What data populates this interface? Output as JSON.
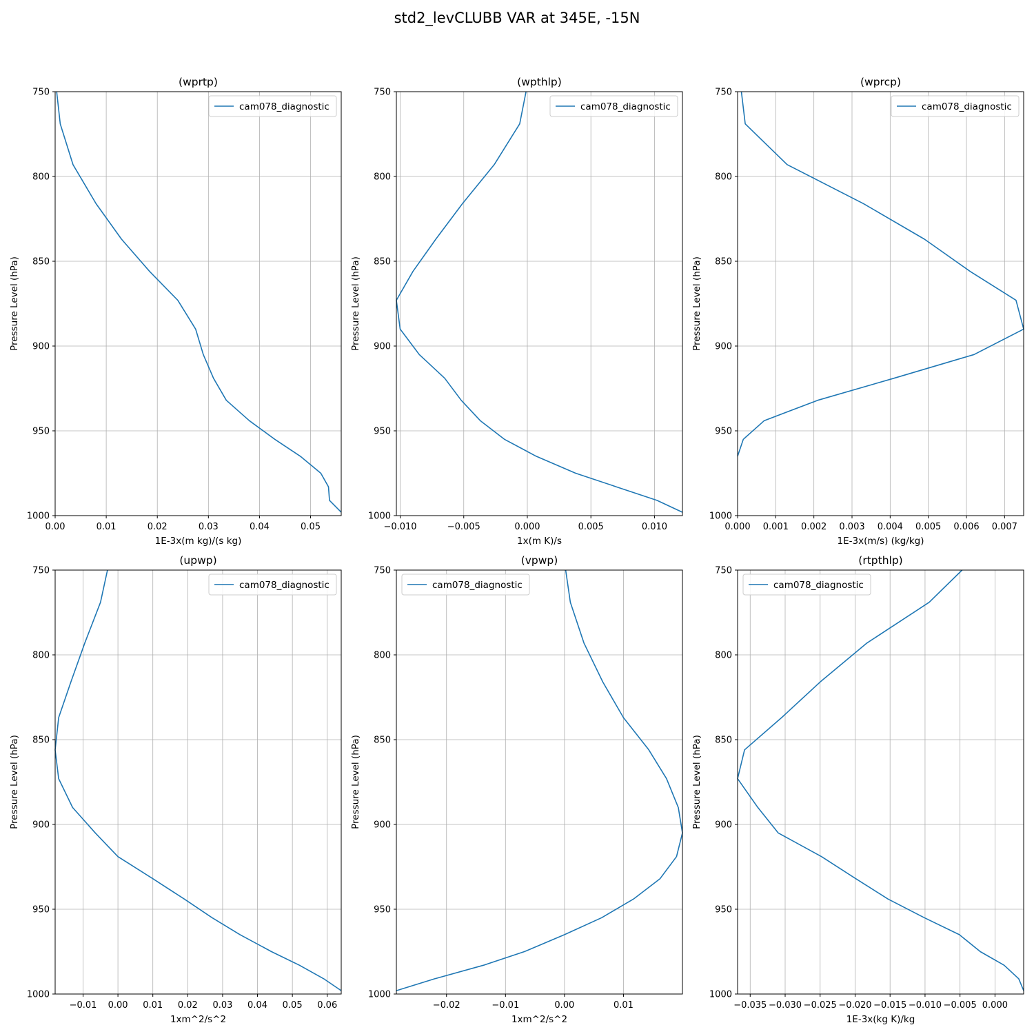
{
  "figure": {
    "title": "std2_levCLUBB VAR at 345E, -15N"
  },
  "chart_data": [
    {
      "type": "line",
      "title": "(wprtp)",
      "xlabel": "1E-3x(m kg)/(s kg)",
      "ylabel": "Pressure Level (hPa)",
      "xlim": [
        0,
        0.056
      ],
      "ylim": [
        1000,
        750
      ],
      "xticks": [
        0,
        0.01,
        0.02,
        0.03,
        0.04,
        0.05
      ],
      "xtick_labels": [
        "0.00",
        "0.01",
        "0.02",
        "0.03",
        "0.04",
        "0.05"
      ],
      "yticks": [
        750,
        800,
        850,
        900,
        950,
        1000
      ],
      "grid": true,
      "legend_position": "top-right",
      "series": [
        {
          "name": "cam078_diagnostic",
          "color": "#1f77b4",
          "x": [
            0.0003,
            0.001,
            0.0035,
            0.008,
            0.013,
            0.0185,
            0.024,
            0.0275,
            0.029,
            0.031,
            0.0335,
            0.038,
            0.043,
            0.048,
            0.052,
            0.0535,
            0.0537,
            0.056
          ],
          "y": [
            750,
            769,
            793,
            816,
            837,
            856,
            873,
            890,
            905,
            919,
            932,
            944,
            955,
            965,
            975,
            983,
            991,
            998
          ]
        }
      ]
    },
    {
      "type": "line",
      "title": "(wpthlp)",
      "xlabel": "1x(m K)/s",
      "ylabel": "Pressure Level (hPa)",
      "xlim": [
        -0.0103,
        0.0122
      ],
      "ylim": [
        1000,
        750
      ],
      "xticks": [
        -0.01,
        -0.005,
        0,
        0.005,
        0.01
      ],
      "xtick_labels": [
        "−0.010",
        "−0.005",
        "0.000",
        "0.005",
        "0.010"
      ],
      "yticks": [
        750,
        800,
        850,
        900,
        950,
        1000
      ],
      "grid": true,
      "legend_position": "top-right",
      "series": [
        {
          "name": "cam078_diagnostic",
          "color": "#1f77b4",
          "x": [
            -0.0001,
            -0.0006,
            -0.0026,
            -0.0051,
            -0.0072,
            -0.009,
            -0.0103,
            -0.01,
            -0.0085,
            -0.0065,
            -0.0052,
            -0.0037,
            -0.0018,
            0.0007,
            0.0038,
            0.007,
            0.0102,
            0.0122
          ],
          "y": [
            750,
            769,
            793,
            816,
            837,
            856,
            873,
            890,
            905,
            919,
            932,
            944,
            955,
            965,
            975,
            983,
            991,
            998
          ]
        }
      ]
    },
    {
      "type": "line",
      "title": "(wprcp)",
      "xlabel": "1E-3x(m/s) (kg/kg)",
      "ylabel": "Pressure Level (hPa)",
      "xlim": [
        0,
        0.0075
      ],
      "ylim": [
        1000,
        750
      ],
      "xticks": [
        0,
        0.001,
        0.002,
        0.003,
        0.004,
        0.005,
        0.006,
        0.007
      ],
      "xtick_labels": [
        "0.000",
        "0.001",
        "0.002",
        "0.003",
        "0.004",
        "0.005",
        "0.006",
        "0.007"
      ],
      "yticks": [
        750,
        800,
        850,
        900,
        950,
        1000
      ],
      "grid": true,
      "legend_position": "top-right",
      "series": [
        {
          "name": "cam078_diagnostic",
          "color": "#1f77b4",
          "x": [
            0.0001,
            0.0002,
            0.0013,
            0.0033,
            0.0049,
            0.0061,
            0.0073,
            0.0075,
            0.0062,
            0.0041,
            0.0021,
            0.0007,
            0.00015,
            0.0
          ],
          "y": [
            750,
            769,
            793,
            816,
            837,
            856,
            873,
            890,
            905,
            919,
            932,
            944,
            955,
            965
          ]
        }
      ]
    },
    {
      "type": "line",
      "title": "(upwp)",
      "xlabel": "1xm^2/s^2",
      "ylabel": "Pressure Level (hPa)",
      "xlim": [
        -0.018,
        0.064
      ],
      "ylim": [
        1000,
        750
      ],
      "xticks": [
        -0.01,
        0,
        0.01,
        0.02,
        0.03,
        0.04,
        0.05,
        0.06
      ],
      "xtick_labels": [
        "−0.01",
        "0.00",
        "0.01",
        "0.02",
        "0.03",
        "0.04",
        "0.05",
        "0.06"
      ],
      "yticks": [
        750,
        800,
        850,
        900,
        950,
        1000
      ],
      "grid": true,
      "legend_position": "top-right",
      "series": [
        {
          "name": "cam078_diagnostic",
          "color": "#1f77b4",
          "x": [
            -0.003,
            -0.005,
            -0.0095,
            -0.0135,
            -0.017,
            -0.018,
            -0.017,
            -0.013,
            -0.0065,
            0.0,
            0.01,
            0.019,
            0.027,
            0.035,
            0.044,
            0.052,
            0.059,
            0.064
          ],
          "y": [
            750,
            769,
            793,
            816,
            837,
            856,
            873,
            890,
            905,
            919,
            932,
            944,
            955,
            965,
            975,
            983,
            991,
            998
          ]
        }
      ]
    },
    {
      "type": "line",
      "title": "(vpwp)",
      "xlabel": "1xm^2/s^2",
      "ylabel": "Pressure Level (hPa)",
      "xlim": [
        -0.0285,
        0.02
      ],
      "ylim": [
        1000,
        750
      ],
      "xticks": [
        -0.02,
        -0.01,
        0,
        0.01
      ],
      "xtick_labels": [
        "−0.02",
        "−0.01",
        "0.00",
        "0.01"
      ],
      "yticks": [
        750,
        800,
        850,
        900,
        950,
        1000
      ],
      "grid": true,
      "legend_position": "top-left",
      "series": [
        {
          "name": "cam078_diagnostic",
          "color": "#1f77b4",
          "x": [
            0.0002,
            0.001,
            0.0033,
            0.0065,
            0.01,
            0.0143,
            0.0173,
            0.0193,
            0.02,
            0.019,
            0.0162,
            0.0117,
            0.0063,
            0.0,
            -0.0068,
            -0.0137,
            -0.022,
            -0.0285
          ],
          "y": [
            750,
            769,
            793,
            816,
            837,
            856,
            873,
            890,
            905,
            919,
            932,
            944,
            955,
            965,
            975,
            983,
            991,
            998
          ]
        }
      ]
    },
    {
      "type": "line",
      "title": "(rtpthlp)",
      "xlabel": "1E-3x(kg K)/kg",
      "ylabel": "Pressure Level (hPa)",
      "xlim": [
        -0.0368,
        0.0041
      ],
      "ylim": [
        1000,
        750
      ],
      "xticks": [
        -0.035,
        -0.03,
        -0.025,
        -0.02,
        -0.015,
        -0.01,
        -0.005,
        0
      ],
      "xtick_labels": [
        "−0.035",
        "−0.030",
        "−0.025",
        "−0.020",
        "−0.015",
        "−0.010",
        "−0.005",
        "0.000"
      ],
      "yticks": [
        750,
        800,
        850,
        900,
        950,
        1000
      ],
      "grid": true,
      "legend_position": "top-left",
      "series": [
        {
          "name": "cam078_diagnostic",
          "color": "#1f77b4",
          "x": [
            -0.0047,
            -0.0094,
            -0.0183,
            -0.025,
            -0.0305,
            -0.0358,
            -0.0368,
            -0.0339,
            -0.031,
            -0.0248,
            -0.0199,
            -0.0153,
            -0.0101,
            -0.0051,
            -0.0021,
            0.0013,
            0.0034,
            0.0041
          ],
          "y": [
            750,
            769,
            793,
            816,
            837,
            856,
            873,
            890,
            905,
            919,
            932,
            944,
            955,
            965,
            975,
            983,
            991,
            998
          ]
        }
      ]
    }
  ]
}
